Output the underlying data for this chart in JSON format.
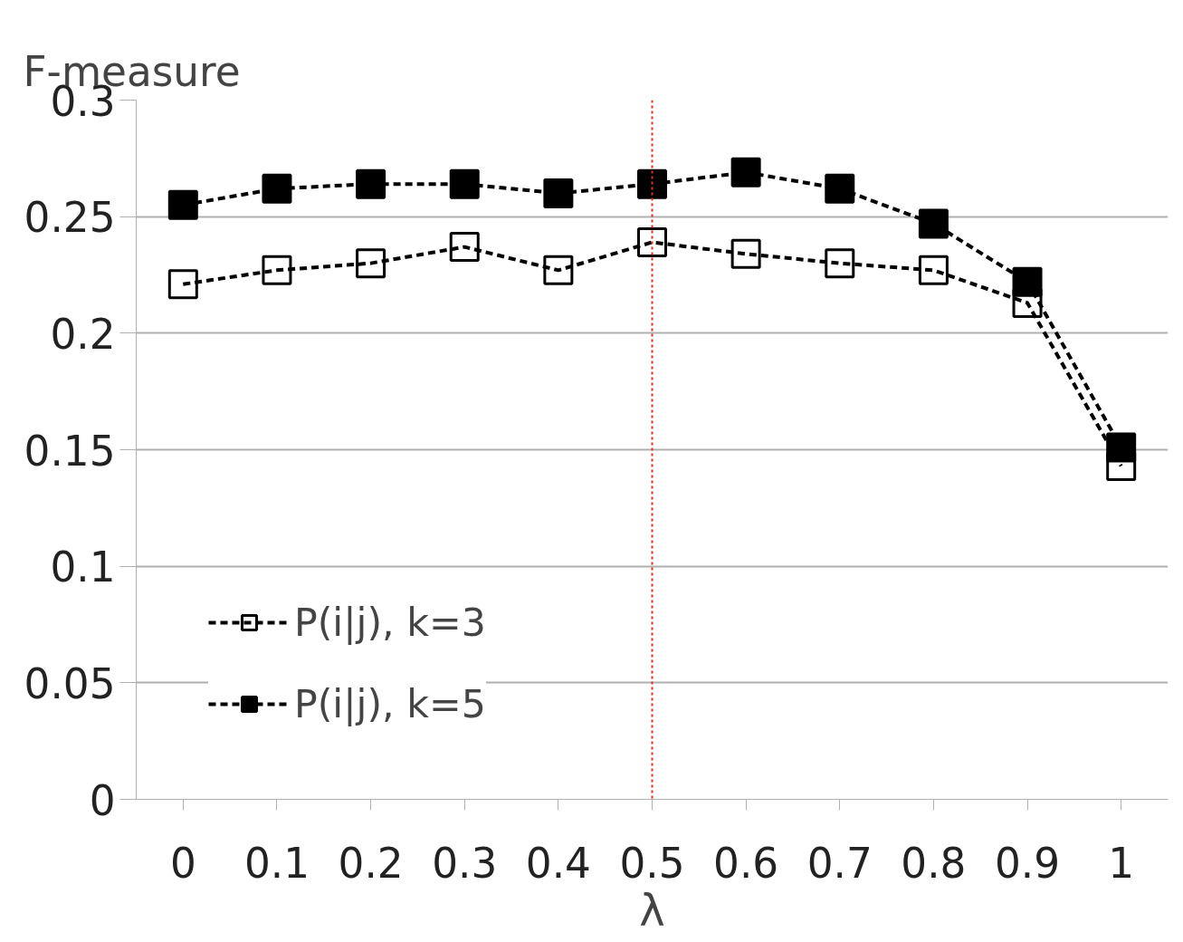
{
  "chart_data": {
    "type": "line",
    "xlabel": "λ",
    "ylabel": "F-measure",
    "x": [
      0,
      0.1,
      0.2,
      0.3,
      0.4,
      0.5,
      0.6,
      0.7,
      0.8,
      0.9,
      1
    ],
    "xlim": [
      -0.05,
      1.05
    ],
    "xticks": [
      0,
      0.1,
      0.2,
      0.3,
      0.4,
      0.5,
      0.6,
      0.7,
      0.8,
      0.9,
      1
    ],
    "ylim": [
      0,
      0.3
    ],
    "yticks": [
      0,
      0.05,
      0.1,
      0.15,
      0.2,
      0.25,
      0.3
    ],
    "series": [
      {
        "name": "P(i|j), k=3",
        "color": "#000000",
        "marker": "square_open",
        "values": [
          0.221,
          0.227,
          0.23,
          0.237,
          0.227,
          0.239,
          0.234,
          0.23,
          0.227,
          0.213,
          0.143
        ]
      },
      {
        "name": "P(i|j), k=5",
        "color": "#000000",
        "marker": "square",
        "values": [
          0.255,
          0.262,
          0.264,
          0.264,
          0.26,
          0.264,
          0.269,
          0.262,
          0.247,
          0.222,
          0.151
        ]
      }
    ],
    "line_style": "dashed",
    "grid": "y",
    "legend": "bottom left",
    "ref_lines": [
      {
        "axis": "x",
        "value": 0.5,
        "color": "#e03020",
        "line_style": "dotted"
      }
    ]
  }
}
